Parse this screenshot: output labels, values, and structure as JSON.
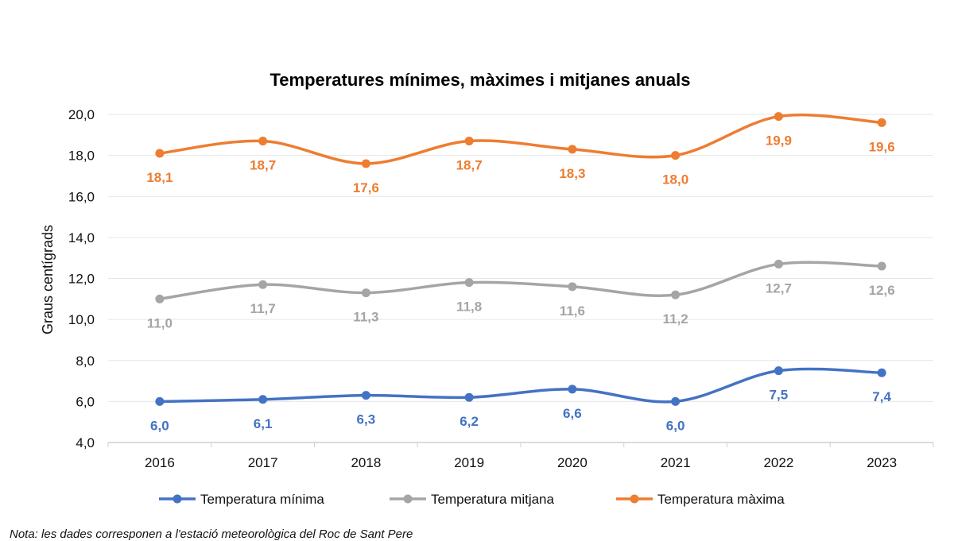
{
  "chart_data": {
    "type": "line",
    "title": "Temperatures mínimes, màximes i mitjanes anuals",
    "xlabel": "",
    "ylabel": "Graus centígrads",
    "ylim": [
      4,
      20
    ],
    "yticks": [
      "4,0",
      "6,0",
      "8,0",
      "10,0",
      "12,0",
      "14,0",
      "16,0",
      "18,0",
      "20,0"
    ],
    "ytick_values": [
      4,
      6,
      8,
      10,
      12,
      14,
      16,
      18,
      20
    ],
    "categories": [
      "2016",
      "2017",
      "2018",
      "2019",
      "2020",
      "2021",
      "2022",
      "2023"
    ],
    "grid": true,
    "legend_position": "bottom",
    "series": [
      {
        "name": "Temperatura mínima",
        "color": "#4472C4",
        "values": [
          6.0,
          6.1,
          6.3,
          6.2,
          6.6,
          6.0,
          7.5,
          7.4
        ],
        "labels": [
          "6,0",
          "6,1",
          "6,3",
          "6,2",
          "6,6",
          "6,0",
          "7,5",
          "7,4"
        ]
      },
      {
        "name": "Temperatura mitjana",
        "color": "#A5A5A5",
        "values": [
          11.0,
          11.7,
          11.3,
          11.8,
          11.6,
          11.2,
          12.7,
          12.6
        ],
        "labels": [
          "11,0",
          "11,7",
          "11,3",
          "11,8",
          "11,6",
          "11,2",
          "12,7",
          "12,6"
        ]
      },
      {
        "name": "Temperatura màxima",
        "color": "#ED7D31",
        "values": [
          18.1,
          18.7,
          17.6,
          18.7,
          18.3,
          18.0,
          19.9,
          19.6
        ],
        "labels": [
          "18,1",
          "18,7",
          "17,6",
          "18,7",
          "18,3",
          "18,0",
          "19,9",
          "19,6"
        ]
      }
    ]
  },
  "note": "Nota: les dades corresponen a l'estació meteorològica del Roc de Sant Pere"
}
